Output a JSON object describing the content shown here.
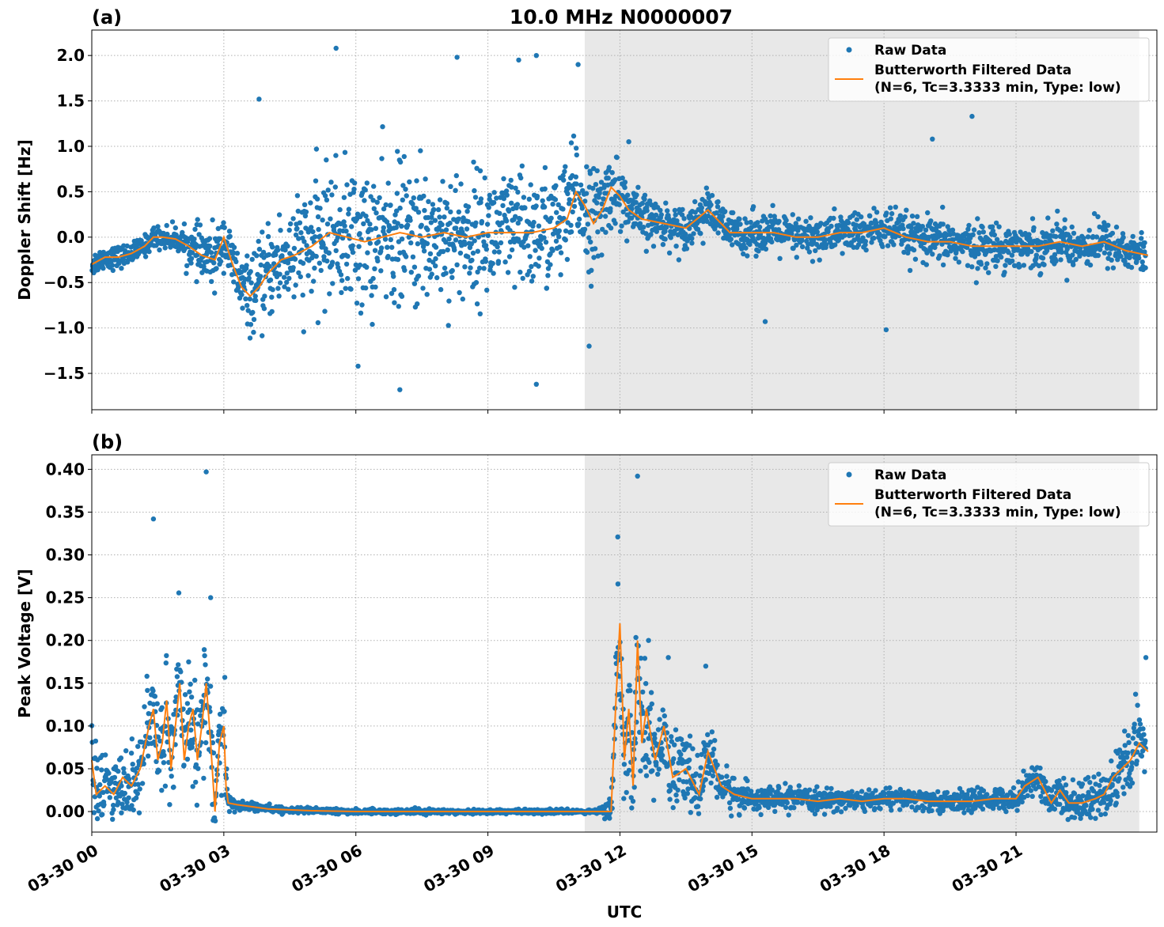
{
  "figure": {
    "title": "10.0 MHz N0000007",
    "xlabel": "UTC"
  },
  "colors": {
    "raw": "#1f77b4",
    "filtered": "#ff7f0e",
    "shade": "#e8e8e8",
    "grid": "#b0b0b0"
  },
  "chart_data": [
    {
      "type": "scatter",
      "panel_label": "(a)",
      "title": "10.0 MHz N0000007",
      "xlabel": "",
      "ylabel": "Doppler Shift [Hz]",
      "x_unit": "hours UTC since 03-30 00:00",
      "xlim": [
        0,
        24.2
      ],
      "ylim": [
        -1.9,
        2.28
      ],
      "y_ticks": [
        -1.5,
        -1.0,
        -0.5,
        0.0,
        0.5,
        1.0,
        1.5,
        2.0
      ],
      "y_tick_labels": [
        "−1.5",
        "−1.0",
        "−0.5",
        "0.0",
        "0.5",
        "1.0",
        "1.5",
        "2.0"
      ],
      "grid": true,
      "shaded_region": [
        11.2,
        23.8
      ],
      "legend": {
        "placement": "top-right",
        "raw_label": "Raw Data",
        "filtered_label_line1": "Butterworth Filtered Data",
        "filtered_label_line2": "(N=6, Tc=3.3333 min, Type: low)"
      },
      "series": [
        {
          "name": "Butterworth Filtered Data",
          "type": "line",
          "x": [
            0,
            0.3,
            0.6,
            0.9,
            1.2,
            1.4,
            1.6,
            1.9,
            2.2,
            2.5,
            2.8,
            3.0,
            3.2,
            3.4,
            3.6,
            3.8,
            4.0,
            4.3,
            4.6,
            5.0,
            5.4,
            5.8,
            6.2,
            6.6,
            7.0,
            7.5,
            8.0,
            8.5,
            9.0,
            9.5,
            10.0,
            10.5,
            10.8,
            11.0,
            11.2,
            11.4,
            11.6,
            11.8,
            12.0,
            12.2,
            12.5,
            13.0,
            13.5,
            14.0,
            14.5,
            15.0,
            15.5,
            16.0,
            16.5,
            17.0,
            17.5,
            18.0,
            18.5,
            19.0,
            19.5,
            20.0,
            20.5,
            21.0,
            21.5,
            22.0,
            22.5,
            23.0,
            23.5,
            24.0
          ],
          "y": [
            -0.3,
            -0.22,
            -0.22,
            -0.18,
            -0.1,
            0.0,
            0.0,
            -0.02,
            -0.1,
            -0.2,
            -0.25,
            0.0,
            -0.3,
            -0.55,
            -0.65,
            -0.55,
            -0.4,
            -0.25,
            -0.2,
            -0.1,
            0.05,
            0.0,
            -0.05,
            0.0,
            0.05,
            0.0,
            0.05,
            0.0,
            0.05,
            0.05,
            0.05,
            0.1,
            0.2,
            0.5,
            0.35,
            0.15,
            0.3,
            0.55,
            0.45,
            0.3,
            0.2,
            0.15,
            0.1,
            0.3,
            0.05,
            0.05,
            0.05,
            0.0,
            0.0,
            0.05,
            0.05,
            0.1,
            0.0,
            -0.05,
            -0.05,
            -0.1,
            -0.1,
            -0.1,
            -0.1,
            -0.05,
            -0.1,
            -0.05,
            -0.15,
            -0.2
          ]
        },
        {
          "name": "Raw Data",
          "type": "scatter",
          "spread_x": [
            0,
            1.0,
            2.0,
            2.6,
            3.0,
            3.3,
            3.6,
            4.0,
            5.0,
            6.0,
            7.0,
            8.0,
            9.0,
            10.0,
            11.0,
            11.5,
            12.0,
            13.0,
            15.0,
            17.0,
            19.0,
            21.0,
            23.0,
            24.0
          ],
          "spread_y": [
            0.12,
            0.1,
            0.12,
            0.3,
            0.25,
            0.3,
            0.35,
            0.45,
            0.6,
            0.7,
            0.7,
            0.65,
            0.6,
            0.6,
            0.55,
            0.5,
            0.3,
            0.2,
            0.2,
            0.2,
            0.22,
            0.22,
            0.22,
            0.2
          ],
          "outliers": [
            [
              5.55,
              2.08
            ],
            [
              7.0,
              -1.68
            ],
            [
              8.3,
              1.98
            ],
            [
              10.1,
              2.0
            ],
            [
              10.1,
              -1.62
            ],
            [
              6.05,
              -1.42
            ],
            [
              11.05,
              1.9
            ],
            [
              9.7,
              1.95
            ],
            [
              18.05,
              -1.02
            ],
            [
              15.3,
              -0.93
            ],
            [
              3.8,
              1.52
            ],
            [
              20.0,
              1.33
            ],
            [
              19.1,
              1.08
            ],
            [
              12.2,
              1.05
            ],
            [
              11.3,
              -1.2
            ]
          ]
        }
      ]
    },
    {
      "type": "scatter",
      "panel_label": "(b)",
      "title": "",
      "xlabel": "UTC",
      "ylabel": "Peak Voltage [V]",
      "x_unit": "hours UTC since 03-30 00:00",
      "xlim": [
        0,
        24.2
      ],
      "ylim": [
        -0.024,
        0.417
      ],
      "y_ticks": [
        0.0,
        0.05,
        0.1,
        0.15,
        0.2,
        0.25,
        0.3,
        0.35,
        0.4
      ],
      "y_tick_labels": [
        "0.00",
        "0.05",
        "0.10",
        "0.15",
        "0.20",
        "0.25",
        "0.30",
        "0.35",
        "0.40"
      ],
      "x_ticks": [
        0,
        3,
        6,
        9,
        12,
        15,
        18,
        21
      ],
      "x_tick_labels": [
        "03-30 00",
        "03-30 03",
        "03-30 06",
        "03-30 09",
        "03-30 12",
        "03-30 15",
        "03-30 18",
        "03-30 21"
      ],
      "grid": true,
      "shaded_region": [
        11.2,
        23.8
      ],
      "legend": {
        "placement": "top-right",
        "raw_label": "Raw Data",
        "filtered_label_line1": "Butterworth Filtered Data",
        "filtered_label_line2": "(N=6, Tc=3.3333 min, Type: low)"
      },
      "series": [
        {
          "name": "Butterworth Filtered Data",
          "type": "line",
          "x": [
            0,
            0.1,
            0.3,
            0.5,
            0.7,
            0.9,
            1.1,
            1.3,
            1.4,
            1.5,
            1.6,
            1.7,
            1.8,
            1.9,
            2.0,
            2.1,
            2.2,
            2.3,
            2.4,
            2.5,
            2.6,
            2.7,
            2.8,
            2.9,
            3.0,
            3.05,
            3.1,
            3.3,
            3.6,
            4.0,
            5.0,
            6.0,
            7.0,
            8.0,
            9.0,
            10.0,
            11.0,
            11.5,
            11.8,
            11.85,
            11.9,
            12.0,
            12.1,
            12.2,
            12.3,
            12.4,
            12.5,
            12.6,
            12.8,
            13.0,
            13.2,
            13.5,
            13.8,
            14.0,
            14.3,
            14.6,
            15.0,
            15.5,
            16.0,
            16.5,
            17.0,
            17.5,
            18.0,
            18.5,
            19.0,
            19.5,
            20.0,
            20.5,
            21.0,
            21.2,
            21.5,
            21.8,
            22.0,
            22.2,
            22.5,
            22.8,
            23.0,
            23.2,
            23.4,
            23.6,
            23.8,
            24.0
          ],
          "y": [
            0.06,
            0.02,
            0.03,
            0.02,
            0.04,
            0.03,
            0.05,
            0.1,
            0.12,
            0.06,
            0.08,
            0.13,
            0.05,
            0.1,
            0.15,
            0.06,
            0.1,
            0.12,
            0.06,
            0.1,
            0.15,
            0.08,
            0.0,
            0.08,
            0.1,
            0.03,
            0.01,
            0.008,
            0.006,
            0.003,
            0.001,
            0.0,
            0.0,
            0.0,
            0.0,
            0.0,
            0.0,
            0.0,
            0.0,
            0.06,
            0.12,
            0.22,
            0.06,
            0.12,
            0.03,
            0.2,
            0.08,
            0.12,
            0.06,
            0.1,
            0.04,
            0.05,
            0.02,
            0.07,
            0.03,
            0.02,
            0.015,
            0.015,
            0.015,
            0.012,
            0.015,
            0.012,
            0.015,
            0.015,
            0.012,
            0.012,
            0.012,
            0.015,
            0.015,
            0.03,
            0.04,
            0.01,
            0.025,
            0.01,
            0.01,
            0.015,
            0.02,
            0.04,
            0.05,
            0.06,
            0.08,
            0.07
          ]
        },
        {
          "name": "Raw Data",
          "type": "scatter",
          "spread_x": [
            0,
            1.0,
            1.3,
            2.0,
            2.6,
            3.0,
            3.1,
            3.5,
            4.0,
            11.5,
            11.8,
            12.0,
            12.5,
            13.0,
            14.0,
            15.0,
            18.0,
            21.0,
            22.0,
            23.0,
            24.0
          ],
          "spread_y": [
            0.04,
            0.04,
            0.05,
            0.06,
            0.07,
            0.06,
            0.01,
            0.005,
            0.003,
            0.002,
            0.02,
            0.07,
            0.06,
            0.04,
            0.03,
            0.012,
            0.01,
            0.012,
            0.02,
            0.03,
            0.05
          ],
          "outliers": [
            [
              1.4,
              0.342
            ],
            [
              2.6,
              0.397
            ],
            [
              2.7,
              0.25
            ],
            [
              11.95,
              0.321
            ],
            [
              12.4,
              0.392
            ],
            [
              13.1,
              0.18
            ],
            [
              13.95,
              0.17
            ],
            [
              23.95,
              0.18
            ],
            [
              2.2,
              0.175
            ],
            [
              12.65,
              0.2
            ]
          ]
        }
      ]
    }
  ]
}
